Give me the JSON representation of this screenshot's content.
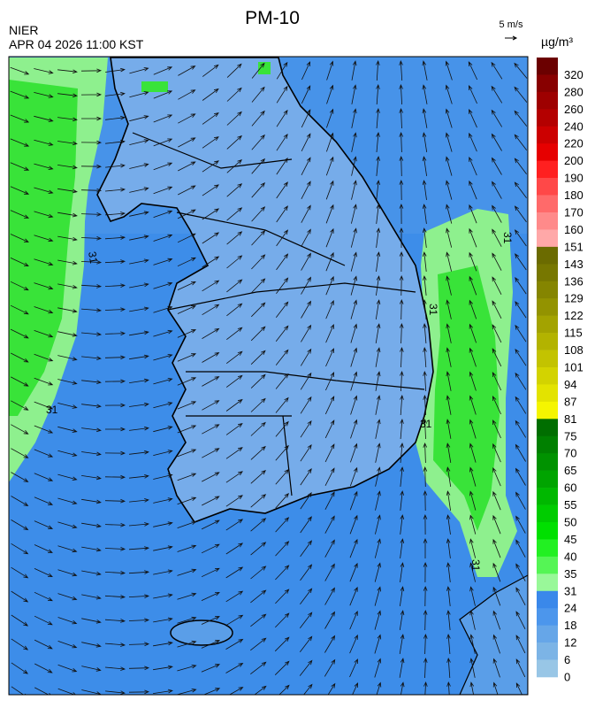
{
  "header": {
    "title": "PM-10",
    "agency": "NIER",
    "datetime": "APR 04 2026 11:00 KST",
    "wind_scale": "5 m/s"
  },
  "legend": {
    "unit": "µg/m³",
    "ticks": [
      320,
      280,
      260,
      240,
      220,
      200,
      190,
      180,
      170,
      160,
      151,
      143,
      136,
      129,
      122,
      115,
      108,
      101,
      94,
      87,
      81,
      75,
      70,
      65,
      60,
      55,
      50,
      45,
      40,
      35,
      31,
      24,
      18,
      12,
      6,
      0
    ],
    "colors": [
      "#6b0000",
      "#880000",
      "#9e0000",
      "#b40000",
      "#cc0000",
      "#e60000",
      "#ff2020",
      "#ff4848",
      "#ff6a6a",
      "#ff8a8a",
      "#ffa8a8",
      "#6b6b00",
      "#777700",
      "#858500",
      "#939300",
      "#a3a300",
      "#b3b300",
      "#c3c300",
      "#d3d300",
      "#e3e300",
      "#f5f500",
      "#006e00",
      "#008000",
      "#009200",
      "#00a400",
      "#00b800",
      "#00cc00",
      "#00e000",
      "#22f022",
      "#55f555",
      "#99f899",
      "#3a88ea",
      "#4c96ec",
      "#66a6e8",
      "#7cb4e6",
      "#98c6e6"
    ]
  },
  "map": {
    "contour_labels": [
      "31",
      "31",
      "31",
      "31",
      "31",
      "31"
    ]
  }
}
